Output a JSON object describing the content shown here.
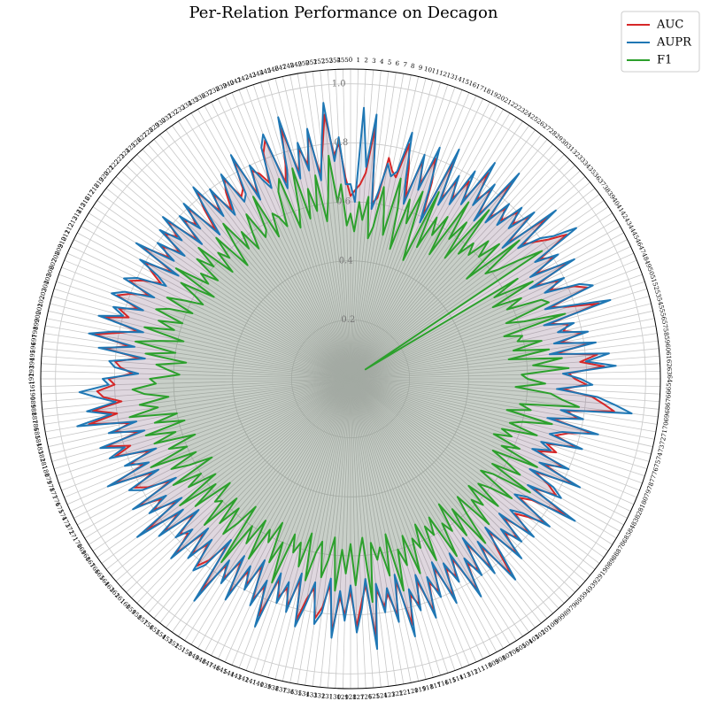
{
  "chart_data": {
    "type": "radar",
    "title": "Per-Relation Performance on Decagon",
    "categories": [
      0,
      1,
      2,
      3,
      4,
      5,
      6,
      7,
      8,
      9,
      10,
      11,
      12,
      13,
      14,
      15,
      16,
      17,
      18,
      19,
      20,
      21,
      22,
      23,
      24,
      25,
      26,
      27,
      28,
      29,
      30,
      31,
      32,
      33,
      34,
      35,
      36,
      37,
      38,
      39,
      40,
      41,
      42,
      43,
      44,
      45,
      46,
      47,
      48,
      49,
      50,
      51,
      52,
      53,
      54,
      55,
      56,
      57,
      58,
      59,
      60,
      61,
      62,
      63,
      64,
      65,
      66,
      67,
      68,
      69,
      70,
      71,
      72,
      73,
      74,
      75,
      76,
      77,
      78,
      79,
      80,
      81,
      82,
      83,
      84,
      85,
      86,
      87,
      88,
      89,
      90,
      91,
      92,
      93,
      94,
      95,
      96,
      97,
      98,
      99,
      100,
      101,
      102,
      103,
      104,
      105,
      106,
      107,
      108,
      109,
      110,
      111,
      112,
      113,
      114,
      115,
      116,
      117,
      118,
      119,
      120,
      121,
      122,
      123,
      124,
      125,
      126,
      127,
      128,
      129,
      130,
      131,
      132,
      133,
      134,
      135,
      136,
      137,
      138,
      139,
      140,
      141,
      142,
      143,
      144,
      145,
      146,
      147,
      148,
      149,
      150,
      151,
      152,
      153,
      154,
      155,
      156,
      157,
      158,
      159,
      160,
      161,
      162,
      163,
      164,
      165,
      166,
      167,
      168,
      169,
      170,
      171,
      172,
      173,
      174,
      175,
      176,
      177,
      178,
      179,
      180,
      181,
      182,
      183,
      184,
      185,
      186,
      187,
      188,
      189,
      190,
      191,
      192,
      193,
      194,
      195,
      196,
      197,
      198,
      199,
      200,
      201,
      202,
      203,
      204,
      205,
      206,
      207,
      208,
      209,
      210,
      211,
      212,
      213,
      214,
      215,
      216,
      217,
      218,
      219,
      220,
      221,
      222,
      223,
      224,
      225,
      226,
      227,
      228,
      229,
      230,
      231,
      232,
      233,
      234,
      235,
      236,
      237,
      238,
      239,
      240,
      241,
      242,
      243,
      244,
      245,
      246,
      247,
      248,
      249,
      250,
      251,
      252,
      253,
      254,
      255
    ],
    "series": [
      {
        "name": "AUC",
        "color": "#d62728",
        "values": [
          0.62,
          0.64,
          0.66,
          0.7,
          0.86,
          0.6,
          0.62,
          0.76,
          0.72,
          0.7,
          0.82,
          0.74,
          0.64,
          0.78,
          0.7,
          0.8,
          0.72,
          0.6,
          0.82,
          0.68,
          0.76,
          0.7,
          0.78,
          0.72,
          0.84,
          0.74,
          0.8,
          0.7,
          0.86,
          0.72,
          0.78,
          0.74,
          0.8,
          0.76,
          0.82,
          0.7,
          0.86,
          0.74,
          0.78,
          0.82,
          0.88,
          0.76,
          0.8,
          0.72,
          0.84,
          0.7,
          0.78,
          0.74,
          0.82,
          0.86,
          0.72,
          0.78,
          0.88,
          0.7,
          0.76,
          0.74,
          0.8,
          0.72,
          0.82,
          0.7,
          0.84,
          0.78,
          0.86,
          0.74,
          0.76,
          0.8,
          0.72,
          0.82,
          0.86,
          0.9,
          0.74,
          0.78,
          0.7,
          0.84,
          0.76,
          0.72,
          0.8,
          0.7,
          0.74,
          0.68,
          0.78,
          0.72,
          0.84,
          0.7,
          0.76,
          0.8,
          0.72,
          0.86,
          0.74,
          0.7,
          0.82,
          0.76,
          0.72,
          0.8,
          0.7,
          0.78,
          0.74,
          0.82,
          0.7,
          0.76,
          0.86,
          0.72,
          0.8,
          0.68,
          0.78,
          0.74,
          0.84,
          0.7,
          0.76,
          0.72,
          0.82,
          0.7,
          0.78,
          0.74,
          0.84,
          0.72,
          0.8,
          0.76,
          0.86,
          0.7,
          0.82,
          0.74,
          0.78,
          0.72,
          0.88,
          0.7,
          0.76,
          0.84,
          0.72,
          0.8,
          0.74,
          0.86,
          0.7,
          0.78,
          0.82,
          0.72,
          0.76,
          0.84,
          0.7,
          0.8,
          0.74,
          0.78,
          0.72,
          0.86,
          0.76,
          0.82,
          0.7,
          0.78,
          0.74,
          0.84,
          0.72,
          0.8,
          0.76,
          0.88,
          0.7,
          0.78,
          0.82,
          0.74,
          0.8,
          0.72,
          0.84,
          0.76,
          0.78,
          0.7,
          0.82,
          0.74,
          0.86,
          0.72,
          0.8,
          0.76,
          0.84,
          0.7,
          0.78,
          0.82,
          0.74,
          0.88,
          0.76,
          0.8,
          0.72,
          0.84,
          0.78,
          0.86,
          0.74,
          0.82,
          0.76,
          0.9,
          0.8,
          0.88,
          0.78,
          0.84,
          0.86,
          0.8,
          0.82,
          0.74,
          0.78,
          0.8,
          0.72,
          0.84,
          0.76,
          0.88,
          0.8,
          0.74,
          0.86,
          0.78,
          0.82,
          0.76,
          0.84,
          0.8,
          0.74,
          0.82,
          0.78,
          0.72,
          0.76,
          0.8,
          0.7,
          0.84,
          0.74,
          0.78,
          0.72,
          0.8,
          0.76,
          0.82,
          0.7,
          0.78,
          0.74,
          0.8,
          0.68,
          0.76,
          0.82,
          0.72,
          0.78,
          0.7,
          0.76,
          0.8,
          0.72,
          0.74,
          0.84,
          0.7,
          0.78,
          0.76,
          0.72,
          0.82,
          0.86,
          0.7,
          0.76,
          0.88,
          0.72,
          0.8,
          0.74,
          0.84,
          0.7,
          0.78,
          0.9,
          0.76,
          0.8,
          0.68
        ]
      },
      {
        "name": "AUPR",
        "color": "#1f77b4",
        "values": [
          0.66,
          0.6,
          0.92,
          0.72,
          0.9,
          0.58,
          0.64,
          0.74,
          0.7,
          0.72,
          0.86,
          0.7,
          0.62,
          0.8,
          0.68,
          0.84,
          0.7,
          0.58,
          0.86,
          0.66,
          0.78,
          0.68,
          0.82,
          0.7,
          0.88,
          0.72,
          0.82,
          0.68,
          0.9,
          0.7,
          0.8,
          0.72,
          0.82,
          0.74,
          0.84,
          0.68,
          0.9,
          0.72,
          0.8,
          0.84,
          0.92,
          0.74,
          0.82,
          0.7,
          0.86,
          0.68,
          0.8,
          0.72,
          0.84,
          0.88,
          0.7,
          0.8,
          0.92,
          0.68,
          0.78,
          0.72,
          0.82,
          0.7,
          0.84,
          0.68,
          0.88,
          0.8,
          0.9,
          0.72,
          0.78,
          0.82,
          0.7,
          0.84,
          0.9,
          0.96,
          0.72,
          0.8,
          0.68,
          0.86,
          0.74,
          0.7,
          0.82,
          0.68,
          0.72,
          0.66,
          0.8,
          0.7,
          0.86,
          0.68,
          0.78,
          0.82,
          0.7,
          0.9,
          0.72,
          0.68,
          0.84,
          0.74,
          0.7,
          0.82,
          0.68,
          0.8,
          0.72,
          0.84,
          0.68,
          0.78,
          0.88,
          0.7,
          0.82,
          0.66,
          0.8,
          0.72,
          0.86,
          0.68,
          0.78,
          0.7,
          0.84,
          0.68,
          0.8,
          0.72,
          0.86,
          0.7,
          0.82,
          0.74,
          0.9,
          0.68,
          0.84,
          0.72,
          0.8,
          0.7,
          0.92,
          0.68,
          0.78,
          0.86,
          0.7,
          0.82,
          0.72,
          0.88,
          0.68,
          0.8,
          0.84,
          0.7,
          0.78,
          0.86,
          0.68,
          0.82,
          0.72,
          0.8,
          0.7,
          0.9,
          0.74,
          0.84,
          0.68,
          0.8,
          0.72,
          0.86,
          0.7,
          0.82,
          0.74,
          0.92,
          0.68,
          0.8,
          0.84,
          0.72,
          0.82,
          0.7,
          0.86,
          0.74,
          0.8,
          0.68,
          0.84,
          0.72,
          0.9,
          0.7,
          0.82,
          0.74,
          0.86,
          0.68,
          0.8,
          0.84,
          0.72,
          0.9,
          0.74,
          0.82,
          0.7,
          0.86,
          0.8,
          0.88,
          0.72,
          0.84,
          0.74,
          0.94,
          0.82,
          0.9,
          0.8,
          0.86,
          0.92,
          0.82,
          0.84,
          0.72,
          0.8,
          0.82,
          0.7,
          0.86,
          0.74,
          0.9,
          0.82,
          0.72,
          0.88,
          0.8,
          0.84,
          0.74,
          0.86,
          0.82,
          0.72,
          0.84,
          0.8,
          0.7,
          0.74,
          0.82,
          0.68,
          0.86,
          0.72,
          0.8,
          0.7,
          0.82,
          0.74,
          0.84,
          0.68,
          0.8,
          0.72,
          0.82,
          0.66,
          0.74,
          0.84,
          0.7,
          0.8,
          0.68,
          0.74,
          0.82,
          0.7,
          0.72,
          0.86,
          0.68,
          0.8,
          0.74,
          0.7,
          0.84,
          0.88,
          0.68,
          0.74,
          0.92,
          0.7,
          0.82,
          0.72,
          0.86,
          0.68,
          0.8,
          0.94,
          0.74,
          0.82,
          0.66
        ]
      },
      {
        "name": "F1",
        "color": "#2ca02c",
        "values": [
          0.56,
          0.5,
          0.6,
          0.54,
          0.62,
          0.48,
          0.52,
          0.66,
          0.58,
          0.5,
          0.7,
          0.6,
          0.46,
          0.64,
          0.56,
          0.68,
          0.52,
          0.44,
          0.7,
          0.5,
          0.62,
          0.56,
          0.64,
          0.5,
          0.72,
          0.58,
          0.66,
          0.52,
          0.74,
          0.56,
          0.62,
          0.58,
          0.66,
          0.6,
          0.68,
          0.52,
          0.74,
          0.58,
          0.62,
          0.7,
          0.78,
          0.06,
          0.66,
          0.56,
          0.7,
          0.54,
          0.64,
          0.58,
          0.7,
          0.72,
          0.56,
          0.62,
          0.76,
          0.54,
          0.6,
          0.58,
          0.66,
          0.56,
          0.68,
          0.54,
          0.72,
          0.62,
          0.74,
          0.58,
          0.6,
          0.66,
          0.56,
          0.68,
          0.72,
          0.78,
          0.58,
          0.62,
          0.54,
          0.7,
          0.6,
          0.56,
          0.66,
          0.54,
          0.58,
          0.52,
          0.62,
          0.56,
          0.7,
          0.54,
          0.6,
          0.66,
          0.56,
          0.72,
          0.58,
          0.54,
          0.68,
          0.6,
          0.56,
          0.66,
          0.54,
          0.62,
          0.58,
          0.68,
          0.54,
          0.6,
          0.72,
          0.56,
          0.66,
          0.52,
          0.62,
          0.58,
          0.7,
          0.54,
          0.6,
          0.56,
          0.68,
          0.54,
          0.62,
          0.58,
          0.7,
          0.56,
          0.66,
          0.6,
          0.74,
          0.54,
          0.68,
          0.58,
          0.62,
          0.56,
          0.76,
          0.54,
          0.6,
          0.7,
          0.56,
          0.66,
          0.58,
          0.72,
          0.54,
          0.62,
          0.68,
          0.56,
          0.6,
          0.7,
          0.54,
          0.66,
          0.58,
          0.62,
          0.56,
          0.74,
          0.6,
          0.68,
          0.54,
          0.62,
          0.58,
          0.7,
          0.56,
          0.66,
          0.6,
          0.76,
          0.54,
          0.62,
          0.68,
          0.58,
          0.66,
          0.56,
          0.7,
          0.6,
          0.62,
          0.54,
          0.68,
          0.58,
          0.72,
          0.56,
          0.66,
          0.6,
          0.7,
          0.54,
          0.62,
          0.68,
          0.58,
          0.74,
          0.6,
          0.66,
          0.56,
          0.7,
          0.62,
          0.72,
          0.58,
          0.68,
          0.6,
          0.76,
          0.66,
          0.72,
          0.62,
          0.7,
          0.74,
          0.66,
          0.68,
          0.58,
          0.62,
          0.66,
          0.56,
          0.7,
          0.6,
          0.74,
          0.66,
          0.58,
          0.72,
          0.62,
          0.68,
          0.6,
          0.7,
          0.66,
          0.58,
          0.68,
          0.62,
          0.56,
          0.6,
          0.66,
          0.54,
          0.7,
          0.58,
          0.62,
          0.56,
          0.66,
          0.6,
          0.68,
          0.54,
          0.62,
          0.58,
          0.66,
          0.52,
          0.6,
          0.68,
          0.56,
          0.62,
          0.54,
          0.6,
          0.66,
          0.56,
          0.58,
          0.7,
          0.54,
          0.62,
          0.6,
          0.56,
          0.68,
          0.72,
          0.54,
          0.6,
          0.74,
          0.56,
          0.66,
          0.58,
          0.7,
          0.54,
          0.62,
          0.76,
          0.6,
          0.66,
          0.52
        ]
      }
    ],
    "rlim": [
      0,
      1.05
    ],
    "rticks": [
      0.2,
      0.4,
      0.6,
      0.8,
      {
        "value": 1,
        "label": "1.0"
      }
    ],
    "grid": true,
    "legend": "upper right"
  }
}
